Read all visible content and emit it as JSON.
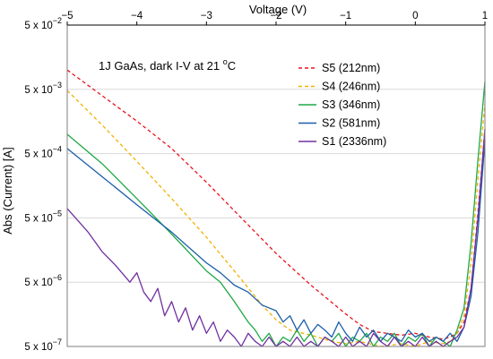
{
  "chart_data": {
    "type": "line",
    "annotation": "1J GaAs,  dark I-V at 21 °C",
    "annotation_parts": {
      "main": "1J GaAs,  dark I-V at 21 ",
      "sup": "o",
      "tail": "C"
    },
    "xlabel": "Voltage (V)",
    "ylabel": "Abs (Current) [A]",
    "x_axis_position": "top",
    "xlim": [
      -5,
      1
    ],
    "ylim": [
      5e-07,
      0.05
    ],
    "y_scale": "log",
    "grid": "horizontal",
    "x_ticks": [
      {
        "value": -5,
        "label": "−5"
      },
      {
        "value": -4,
        "label": "−4"
      },
      {
        "value": -3,
        "label": "−3"
      },
      {
        "value": -2,
        "label": "−2"
      },
      {
        "value": -1,
        "label": "−1"
      },
      {
        "value": 0,
        "label": "0"
      },
      {
        "value": 1,
        "label": "1"
      }
    ],
    "y_ticks": [
      {
        "value": 0.05,
        "base": "5 x 10",
        "exp": "−2"
      },
      {
        "value": 0.005,
        "base": "5 x 10",
        "exp": "−3"
      },
      {
        "value": 0.0005,
        "base": "5 x 10",
        "exp": "−4"
      },
      {
        "value": 5e-05,
        "base": "5 x 10",
        "exp": "−5"
      },
      {
        "value": 5e-06,
        "base": "5 x 10",
        "exp": "−6"
      },
      {
        "value": 5e-07,
        "base": "5 x 10",
        "exp": "−7"
      }
    ],
    "legend_position": "top-right",
    "series": [
      {
        "name": "S5 (212nm)",
        "color": "#e8141c",
        "dash": "dashed",
        "x": [
          -5.0,
          -4.5,
          -4.0,
          -3.5,
          -3.0,
          -2.5,
          -2.0,
          -1.5,
          -1.0,
          -0.8,
          -0.6,
          -0.4,
          -0.2,
          0.0,
          0.2,
          0.4,
          0.5,
          0.6,
          0.7,
          0.8,
          0.9,
          1.0
        ],
        "y": [
          0.01,
          0.004,
          0.0016,
          0.0006,
          0.00018,
          5e-05,
          1.4e-05,
          4.5e-06,
          1.6e-06,
          1.1e-06,
          8.5e-07,
          8e-07,
          7.5e-07,
          8e-07,
          7e-07,
          6.5e-07,
          7e-07,
          8e-07,
          1.2e-06,
          4e-06,
          6e-05,
          0.0012
        ]
      },
      {
        "name": "S4 (246nm)",
        "color": "#f2b100",
        "dash": "dashed",
        "x": [
          -5.0,
          -4.5,
          -4.0,
          -3.5,
          -3.0,
          -2.6,
          -2.2,
          -2.0,
          -1.8,
          -1.5,
          -1.2,
          -1.0,
          -0.8,
          -0.5,
          -0.2,
          0.0,
          0.2,
          0.4,
          0.5,
          0.6,
          0.7,
          0.8,
          0.9,
          1.0
        ],
        "y": [
          0.0048,
          0.0014,
          0.00038,
          0.0001,
          2.5e-05,
          7.5e-06,
          2.2e-06,
          1.3e-06,
          9e-07,
          7.5e-07,
          6e-07,
          5.5e-07,
          6e-07,
          5e-07,
          5.5e-07,
          5e-07,
          6e-07,
          5.5e-07,
          6e-07,
          8e-07,
          1.5e-06,
          1e-05,
          0.0002,
          0.003
        ]
      },
      {
        "name": "S3 (346nm)",
        "color": "#1fa845",
        "dash": "solid",
        "x": [
          -5.0,
          -4.5,
          -4.0,
          -3.5,
          -3.0,
          -2.8,
          -2.6,
          -2.4,
          -2.3,
          -2.2,
          -2.1,
          -2.0,
          -1.9,
          -1.8,
          -1.7,
          -1.6,
          -1.5,
          -1.4,
          -1.3,
          -1.2,
          -1.1,
          -1.0,
          -0.9,
          -0.8,
          -0.7,
          -0.6,
          -0.5,
          -0.4,
          -0.3,
          -0.2,
          -0.1,
          0.0,
          0.1,
          0.2,
          0.3,
          0.4,
          0.5,
          0.6,
          0.7,
          0.8,
          0.9,
          1.0
        ],
        "y": [
          0.001,
          0.00035,
          0.0001,
          2.8e-05,
          7.5e-06,
          5e-06,
          2.5e-06,
          1.2e-06,
          9e-07,
          6e-07,
          8e-07,
          5e-07,
          7e-07,
          6e-07,
          9e-07,
          6e-07,
          8e-07,
          5e-07,
          7e-07,
          6e-07,
          8e-07,
          5e-07,
          7e-07,
          6e-07,
          8e-07,
          5e-07,
          7e-07,
          6e-07,
          8e-07,
          5e-07,
          7e-07,
          6e-07,
          8e-07,
          5e-07,
          7e-07,
          6e-07,
          5e-07,
          9e-07,
          2e-06,
          2e-05,
          0.0004,
          0.0066
        ]
      },
      {
        "name": "S2 (581nm)",
        "color": "#1a5ea8",
        "dash": "solid",
        "x": [
          -5.0,
          -4.5,
          -4.0,
          -3.5,
          -3.0,
          -2.8,
          -2.6,
          -2.4,
          -2.2,
          -2.0,
          -1.9,
          -1.8,
          -1.7,
          -1.6,
          -1.5,
          -1.4,
          -1.3,
          -1.2,
          -1.1,
          -1.0,
          -0.9,
          -0.8,
          -0.7,
          -0.6,
          -0.5,
          -0.4,
          -0.3,
          -0.2,
          -0.1,
          0.0,
          0.1,
          0.2,
          0.3,
          0.4,
          0.5,
          0.6,
          0.7,
          0.8,
          0.9,
          1.0
        ],
        "y": [
          0.0006,
          0.00022,
          8e-05,
          3e-05,
          1e-05,
          7e-06,
          4.5e-06,
          3.5e-06,
          2.2e-06,
          1.8e-06,
          1.2e-06,
          1.5e-06,
          9e-07,
          1.3e-06,
          8e-07,
          1.1e-06,
          9e-07,
          7e-07,
          1.2e-06,
          8e-07,
          6e-07,
          1e-06,
          7e-07,
          9e-07,
          6e-07,
          8e-07,
          7e-07,
          6e-07,
          9e-07,
          7e-07,
          8e-07,
          6e-07,
          7e-07,
          6e-07,
          8e-07,
          6e-07,
          1e-06,
          3e-06,
          3e-05,
          0.0008
        ]
      },
      {
        "name": "S1 (2336nm)",
        "color": "#7030a0",
        "dash": "solid",
        "x": [
          -5.0,
          -4.7,
          -4.5,
          -4.3,
          -4.1,
          -4.0,
          -3.9,
          -3.8,
          -3.7,
          -3.6,
          -3.5,
          -3.4,
          -3.3,
          -3.2,
          -3.1,
          -3.0,
          -2.9,
          -2.8,
          -2.7,
          -2.6,
          -2.5,
          -2.4,
          -2.3,
          -2.2,
          -2.1,
          -2.0,
          -1.9,
          -1.8,
          -1.7,
          -1.6,
          -1.5,
          -1.4,
          -1.3,
          -1.2,
          -1.1,
          -1.0,
          -0.9,
          -0.8,
          -0.7,
          -0.6,
          -0.5,
          -0.4,
          -0.3,
          -0.2,
          -0.1,
          0.0,
          0.1,
          0.2,
          0.3,
          0.4,
          0.5,
          0.6,
          0.7,
          0.8,
          0.9,
          1.0
        ],
        "y": [
          7e-05,
          3e-05,
          1.5e-05,
          9e-06,
          5e-06,
          7e-06,
          3.5e-06,
          2.5e-06,
          4e-06,
          1.5e-06,
          2.5e-06,
          1.2e-06,
          2e-06,
          9e-07,
          1.5e-06,
          8e-07,
          1.2e-06,
          6e-07,
          9e-07,
          7e-07,
          5e-07,
          8e-07,
          6e-07,
          5e-07,
          7e-07,
          5e-07,
          6e-07,
          5e-07,
          7e-07,
          5e-07,
          6e-07,
          5e-07,
          7e-07,
          6e-07,
          5e-07,
          7e-07,
          5e-07,
          6e-07,
          5e-07,
          8e-07,
          6e-07,
          5e-07,
          7e-07,
          5e-07,
          6e-07,
          5e-07,
          7e-07,
          5e-07,
          6e-07,
          5e-07,
          6e-07,
          7e-07,
          1e-06,
          4e-06,
          5e-05,
          0.0012
        ]
      }
    ]
  }
}
